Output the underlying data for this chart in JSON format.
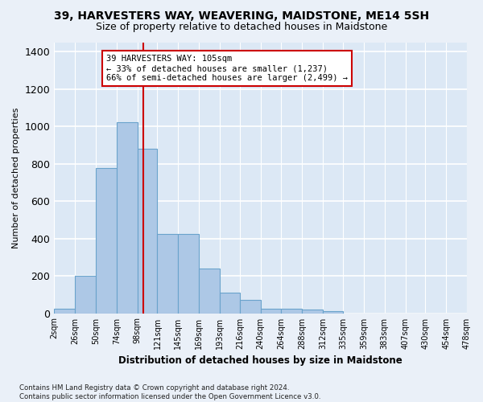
{
  "title": "39, HARVESTERS WAY, WEAVERING, MAIDSTONE, ME14 5SH",
  "subtitle": "Size of property relative to detached houses in Maidstone",
  "xlabel": "Distribution of detached houses by size in Maidstone",
  "ylabel": "Number of detached properties",
  "bar_color": "#adc8e6",
  "bar_edge_color": "#6aa3cc",
  "background_color": "#dce8f5",
  "grid_color": "#ffffff",
  "property_line_x": 105,
  "property_line_color": "#cc0000",
  "annotation_line1": "39 HARVESTERS WAY: 105sqm",
  "annotation_line2": "← 33% of detached houses are smaller (1,237)",
  "annotation_line3": "66% of semi-detached houses are larger (2,499) →",
  "annotation_box_color": "#ffffff",
  "annotation_box_edge": "#cc0000",
  "footer_text": "Contains HM Land Registry data © Crown copyright and database right 2024.\nContains public sector information licensed under the Open Government Licence v3.0.",
  "bin_edges": [
    2,
    26,
    50,
    74,
    98,
    121,
    145,
    169,
    193,
    216,
    240,
    264,
    288,
    312,
    335,
    359,
    383,
    407,
    430,
    454,
    478
  ],
  "bin_labels": [
    "2sqm",
    "26sqm",
    "50sqm",
    "74sqm",
    "98sqm",
    "121sqm",
    "145sqm",
    "169sqm",
    "193sqm",
    "216sqm",
    "240sqm",
    "264sqm",
    "288sqm",
    "312sqm",
    "335sqm",
    "359sqm",
    "383sqm",
    "407sqm",
    "430sqm",
    "454sqm",
    "478sqm"
  ],
  "bar_heights": [
    25,
    200,
    775,
    1020,
    880,
    425,
    425,
    240,
    110,
    70,
    25,
    25,
    20,
    10,
    0,
    0,
    0,
    0,
    0,
    0
  ],
  "ylim": [
    0,
    1450
  ],
  "yticks": [
    0,
    200,
    400,
    600,
    800,
    1000,
    1200,
    1400
  ]
}
